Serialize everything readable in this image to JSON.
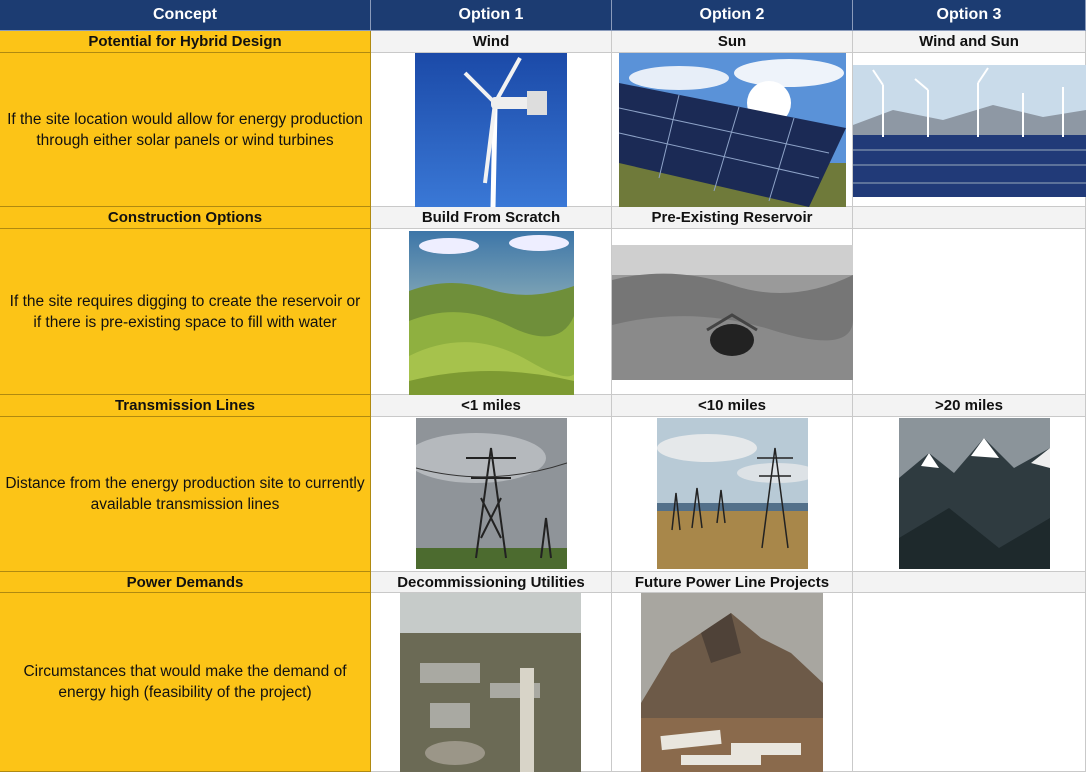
{
  "header": [
    "Concept",
    "Option 1",
    "Option 2",
    "Option 3"
  ],
  "sections": [
    {
      "title": "Potential for Hybrid Design",
      "description": "If the site location would allow for energy production through either solar panels or wind turbines",
      "options": [
        "Wind",
        "Sun",
        "Wind and Sun"
      ]
    },
    {
      "title": "Construction Options",
      "description": "If the site requires digging to create the reservoir or if there is pre-existing space to fill with water",
      "options": [
        "Build From Scratch",
        "Pre-Existing Reservoir"
      ]
    },
    {
      "title": "Transmission Lines",
      "description": "Distance from the energy production site to currently available transmission lines",
      "options": [
        "<1 miles",
        "<10 miles",
        ">20 miles"
      ]
    },
    {
      "title": "Power Demands",
      "description": "Circumstances that would make the demand of energy high (feasibility of the project)",
      "options": [
        "Decommissioning Utilities",
        "Future Power Line Projects"
      ]
    }
  ]
}
